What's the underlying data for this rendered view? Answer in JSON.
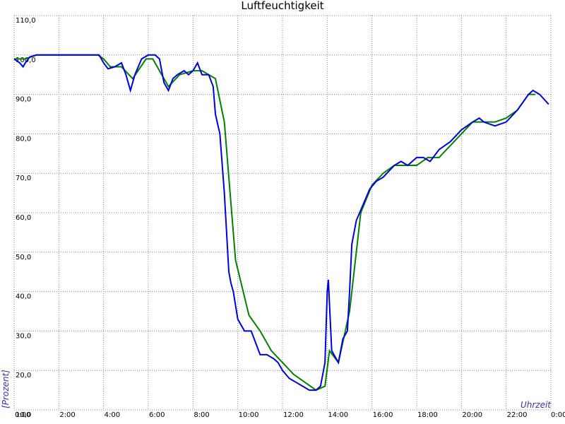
{
  "chart_data": {
    "type": "line",
    "title": "Luftfeuchtigkeit",
    "y_label": "[Prozent]",
    "x_label": "Uhrzeit",
    "xlim": [
      0,
      24
    ],
    "ylim": [
      10,
      110
    ],
    "grid": true,
    "xticks": [
      {
        "value": 0,
        "label": "0:00"
      },
      {
        "value": 2,
        "label": "2:00"
      },
      {
        "value": 4,
        "label": "4:00"
      },
      {
        "value": 6,
        "label": "6:00"
      },
      {
        "value": 8,
        "label": "8:00"
      },
      {
        "value": 10,
        "label": "10:00"
      },
      {
        "value": 12,
        "label": "12:00"
      },
      {
        "value": 14,
        "label": "14:00"
      },
      {
        "value": 16,
        "label": "16:00"
      },
      {
        "value": 18,
        "label": "18:00"
      },
      {
        "value": 20,
        "label": "20:00"
      },
      {
        "value": 22,
        "label": "22:00"
      },
      {
        "value": 24,
        "label": "0:00"
      }
    ],
    "yticks": [
      {
        "value": 10,
        "label": "10,0"
      },
      {
        "value": 20,
        "label": "20,0"
      },
      {
        "value": 30,
        "label": "30,0"
      },
      {
        "value": 40,
        "label": "40,0"
      },
      {
        "value": 50,
        "label": "50,0"
      },
      {
        "value": 60,
        "label": "60,0"
      },
      {
        "value": 70,
        "label": "70,0"
      },
      {
        "value": 80,
        "label": "80,0"
      },
      {
        "value": 90,
        "label": "90,0"
      },
      {
        "value": 100,
        "label": "100,0"
      },
      {
        "value": 110,
        "label": "110,0"
      }
    ],
    "series": [
      {
        "color": "#0000dd",
        "x": [
          0,
          0.25,
          0.4,
          0.5,
          0.7,
          1,
          2,
          3,
          3.8,
          4.0,
          4.2,
          4.5,
          4.8,
          5.0,
          5.2,
          5.4,
          5.7,
          6.0,
          6.3,
          6.5,
          6.7,
          6.9,
          7.1,
          7.3,
          7.6,
          7.8,
          8.0,
          8.2,
          8.4,
          8.7,
          8.9,
          9.0,
          9.2,
          9.4,
          9.6,
          9.7,
          9.8,
          10.0,
          10.3,
          10.6,
          10.8,
          11.0,
          11.3,
          11.6,
          11.8,
          12.0,
          12.3,
          12.6,
          12.9,
          13.2,
          13.5,
          13.7,
          13.9,
          14.0,
          14.05,
          14.2,
          14.5,
          14.7,
          14.9,
          15.0,
          15.1,
          15.3,
          15.6,
          15.9,
          16.2,
          16.5,
          17.0,
          17.3,
          17.6,
          18.0,
          18.3,
          18.6,
          19.0,
          19.5,
          20.0,
          20.5,
          20.8,
          21.0,
          21.5,
          22.0,
          22.5,
          23.0,
          23.2,
          23.5,
          23.9
        ],
        "values": [
          99,
          98,
          97,
          98,
          99.5,
          100,
          100,
          100,
          100,
          98,
          96.5,
          97,
          98,
          95,
          91,
          95,
          99,
          100,
          100,
          99,
          93,
          91,
          94,
          95,
          96,
          95,
          96,
          98,
          95,
          95,
          92,
          85,
          80,
          65,
          45,
          42,
          40,
          33,
          30,
          30,
          27,
          24,
          24,
          23,
          22,
          20,
          18,
          17,
          16,
          15,
          15,
          16,
          22,
          40,
          43,
          25,
          22,
          28,
          30,
          40,
          52,
          58,
          62,
          66,
          68,
          69,
          72,
          73,
          72,
          74,
          74,
          73,
          76,
          78,
          81,
          83,
          84,
          83,
          82,
          83,
          86,
          90,
          91,
          90,
          87.5
        ]
      },
      {
        "color": "#008000",
        "x": [
          0,
          0.5,
          1,
          3.75,
          4,
          4.3,
          4.8,
          5.3,
          5.9,
          6.2,
          6.6,
          6.9,
          7.4,
          8.0,
          8.4,
          9.0,
          9.4,
          9.9,
          10.5,
          11.0,
          11.5,
          12.0,
          12.5,
          13.0,
          13.5,
          13.9,
          14.1,
          14.5,
          15.0,
          15.5,
          16.0,
          16.5,
          17.0,
          17.5,
          18.0,
          18.5,
          19.0,
          19.5,
          20.0,
          20.5,
          21.0,
          21.5,
          22.0,
          22.5,
          23.0,
          23.3
        ],
        "values": [
          99,
          99,
          100,
          100,
          99,
          97,
          97,
          94,
          99,
          99,
          95,
          92,
          95,
          96,
          96,
          94,
          83,
          48,
          34,
          30,
          25,
          22,
          19,
          17,
          15,
          16,
          25,
          22,
          35,
          60,
          67,
          70,
          72,
          72,
          72,
          74,
          74,
          77,
          80,
          83,
          83,
          83,
          84,
          86,
          90,
          90
        ]
      }
    ]
  }
}
